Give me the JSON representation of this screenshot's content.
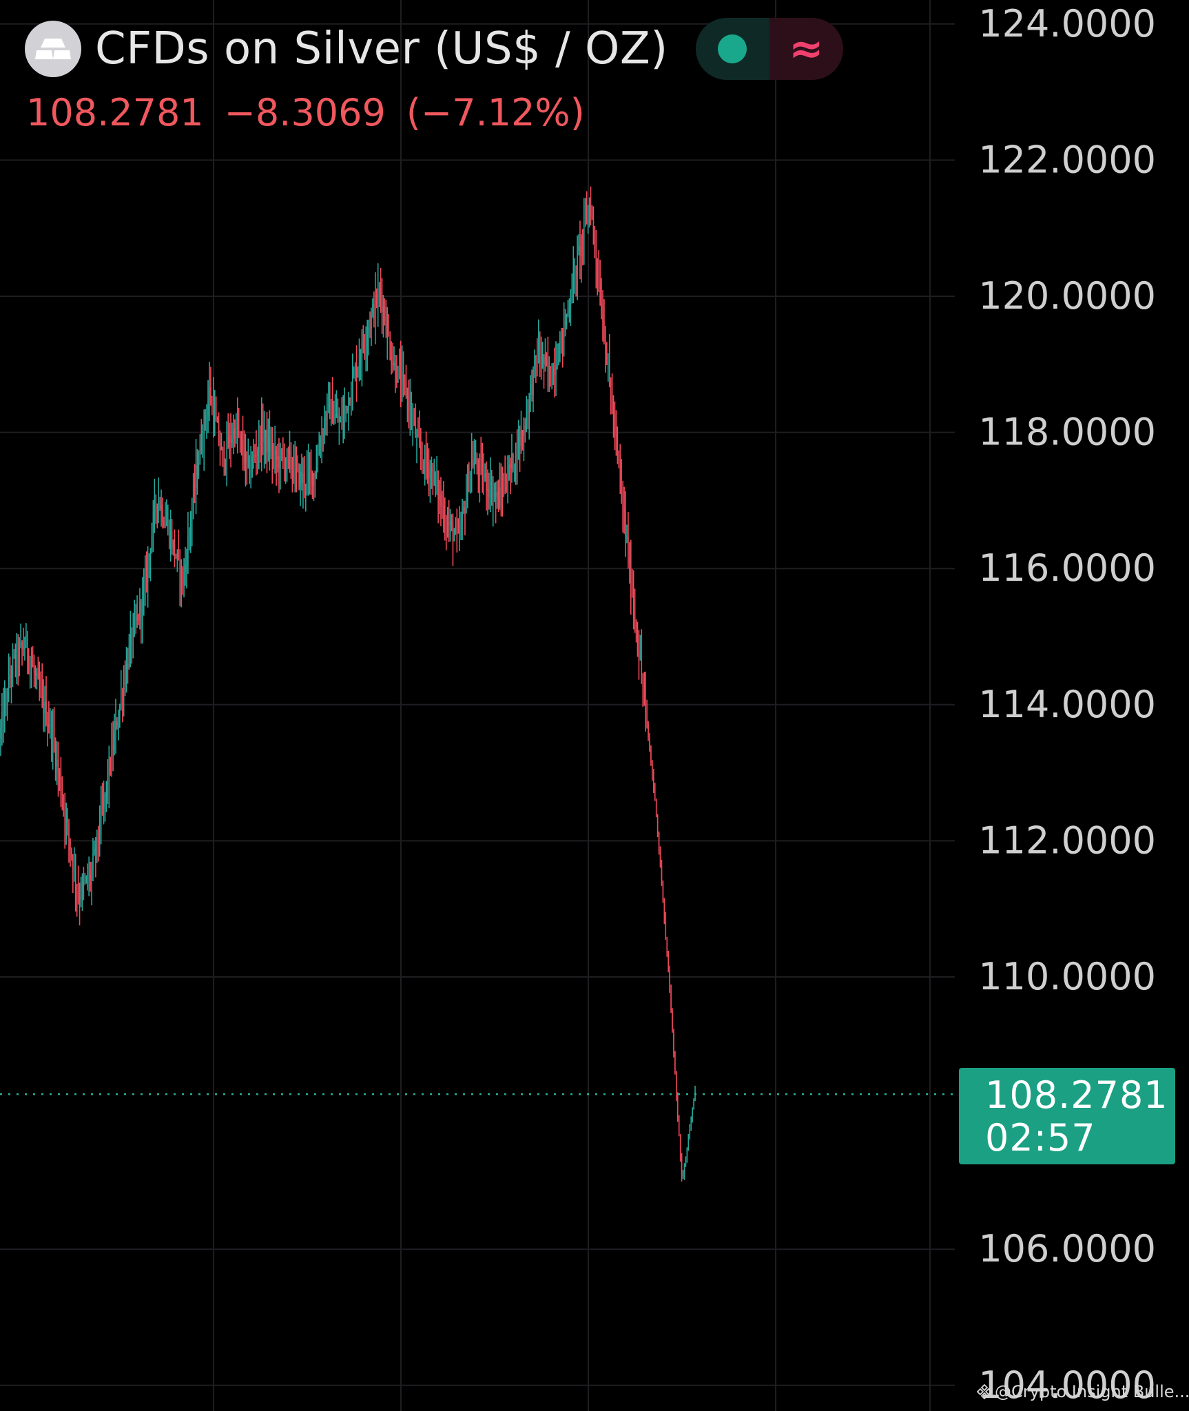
{
  "header": {
    "title": "CFDs on Silver (US$ / OZ)",
    "logo_icon": "silver-bars-icon",
    "status_icons": [
      "market-open-dot-icon",
      "wave-indicator-icon"
    ]
  },
  "quote": {
    "price": "108.2781",
    "change": "−8.3069",
    "change_percent": "(−7.12%)"
  },
  "price_tag": {
    "value": "108.2781",
    "countdown": "02:57"
  },
  "watermark": "@Crypto Insight Bulle...",
  "colors": {
    "background": "#000000",
    "up": "#26a69a",
    "down": "#f04a5a",
    "grid": "#1e1e22",
    "axis_text": "#cfcfcf",
    "price_tag": "#1ba083"
  },
  "chart_data": {
    "type": "candlestick",
    "y_axis_position": "right",
    "ylim": [
      104,
      124.2
    ],
    "yticks": [
      "124.0000",
      "122.0000",
      "120.0000",
      "118.0000",
      "116.0000",
      "114.0000",
      "112.0000",
      "110.0000",
      "106.0000",
      "104.0000"
    ],
    "current_price": 108.2781,
    "grid": true,
    "series": [
      {
        "values": [
          113.5,
          114.6,
          114.9,
          114.2,
          113.6,
          112.4,
          111.2,
          111.5,
          112.6,
          113.8,
          114.9,
          115.6,
          117.1,
          116.5,
          115.8,
          117.4,
          118.6,
          117.6,
          118.1,
          117.4,
          118.0,
          117.6,
          117.6,
          117.3,
          117.4,
          118.4,
          118.1,
          118.8,
          119.5,
          120.1,
          119.0,
          118.6,
          117.7,
          117.4,
          116.7,
          116.4,
          117.6,
          117.3,
          117.0,
          117.5,
          118.1,
          119.2,
          118.8,
          119.5,
          120.5,
          121.4,
          119.6,
          117.8,
          116.0,
          114.3,
          112.5,
          110.0,
          107.0,
          108.3
        ],
        "note": "price path approx. read from the chart, last point is current price"
      }
    ]
  }
}
